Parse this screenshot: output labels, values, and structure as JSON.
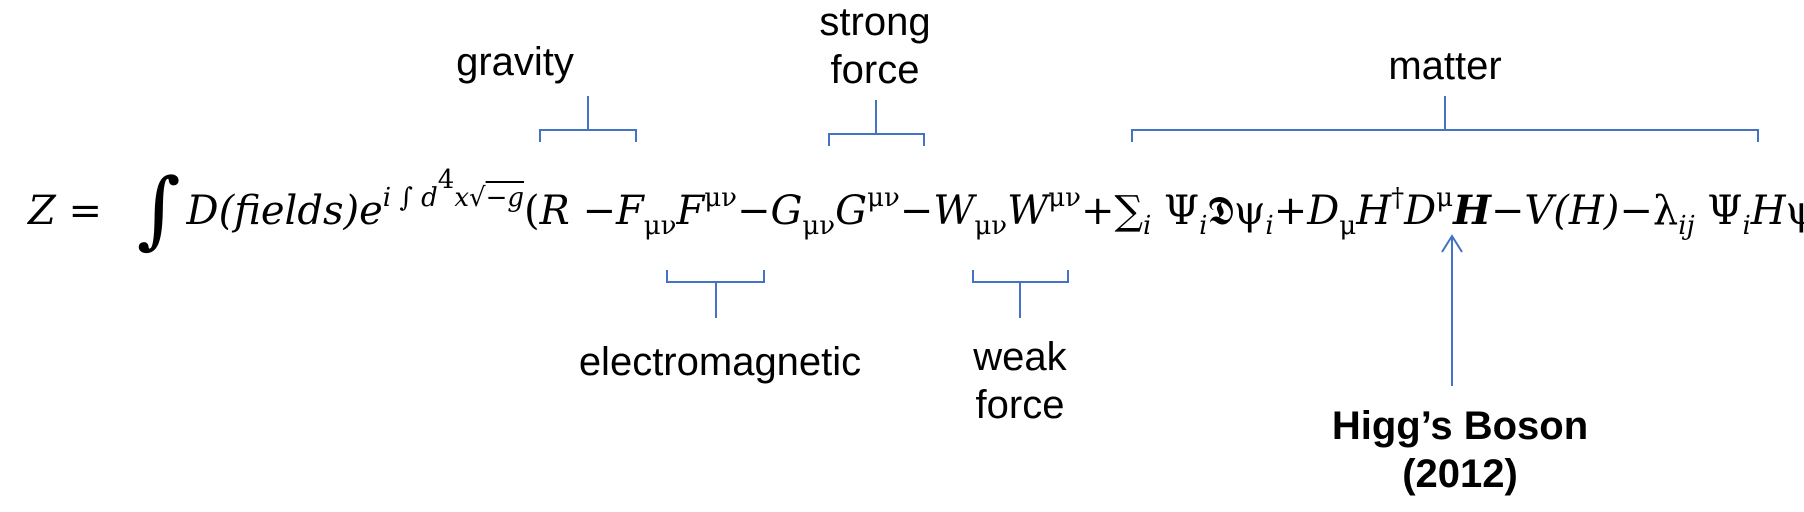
{
  "labels": {
    "gravity": "gravity",
    "strong_force_line1": "strong",
    "strong_force_line2": "force",
    "matter": "matter",
    "electromagnetic": "electromagnetic",
    "weak_force_line1": "weak",
    "weak_force_line2": "force",
    "higgs_line1": "Higg’s Boson",
    "higgs_line2": "(2012)"
  },
  "equation": {
    "z": "Z",
    "eq": " = ",
    "integral": "∫",
    "d_fields": "D(fields)",
    "e": "e",
    "exponent": "i ∫ d",
    "four": "4",
    "x": "x",
    "sqrt": "√",
    "minus_g": "−g",
    "open": "(",
    "R": "R",
    "minus1": " −",
    "F": "F",
    "munu": "μν",
    "minus2": "−",
    "G": "G",
    "minus3": "−",
    "W": "W",
    "plus_sum": "+∑",
    "i": "i",
    "Psi": " Ψ",
    "Dslash": "𝕯",
    "psi": "ψ",
    "plus": "+",
    "D": "D",
    "mu": "μ",
    "H": "H",
    "dagger": "†",
    "minus4": "−",
    "V_H": "V(H)",
    "minus5": "−",
    "lambda": "λ",
    "ij": "ij",
    "j": "j",
    "close": ")"
  }
}
